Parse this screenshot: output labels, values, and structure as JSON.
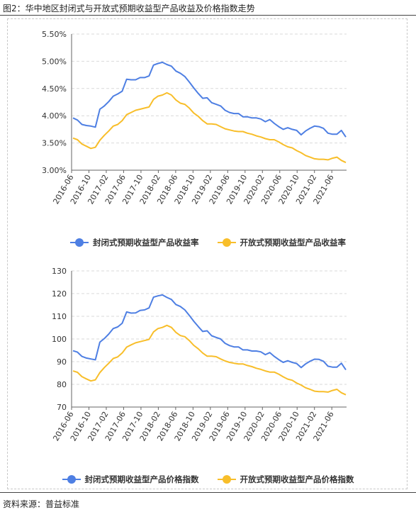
{
  "figure": {
    "title": "图2：华中地区封闭式与开放式预期收益型产品收益及价格指数走势",
    "source": "资料来源：普益标准"
  },
  "colors": {
    "closed": "#4e7fe3",
    "open": "#f8be2a",
    "grid": "#d9d9d9",
    "axis": "#666666"
  },
  "chart_data": [
    {
      "type": "line",
      "title": "",
      "xlabel": "",
      "ylabel": "",
      "x_tick_labels": [
        "2016-06",
        "2016-10",
        "2017-02",
        "2017-06",
        "2017-10",
        "2018-02",
        "2018-06",
        "2018-10",
        "2019-02",
        "2019-06",
        "2019-10",
        "2020-02",
        "2020-06",
        "2020-10",
        "2021-02",
        "2021-06"
      ],
      "y_tick_labels": [
        "3.00%",
        "3.50%",
        "4.00%",
        "4.50%",
        "5.00%",
        "5.50%"
      ],
      "ylim": [
        3.0,
        5.5
      ],
      "grid": true,
      "legend": "bottom",
      "series": [
        {
          "name": "封闭式预期收益型产品收益率",
          "color": "closed",
          "values": [
            3.96,
            3.92,
            3.84,
            3.82,
            3.81,
            3.79,
            4.12,
            4.18,
            4.26,
            4.36,
            4.4,
            4.45,
            4.67,
            4.66,
            4.66,
            4.7,
            4.7,
            4.73,
            4.93,
            4.96,
            4.98,
            4.94,
            4.91,
            4.82,
            4.78,
            4.72,
            4.62,
            4.51,
            4.41,
            4.32,
            4.33,
            4.24,
            4.21,
            4.18,
            4.1,
            4.06,
            4.04,
            4.04,
            3.98,
            3.98,
            3.96,
            3.96,
            3.94,
            3.89,
            3.93,
            3.86,
            3.8,
            3.75,
            3.78,
            3.75,
            3.73,
            3.65,
            3.72,
            3.77,
            3.81,
            3.8,
            3.77,
            3.68,
            3.66,
            3.66,
            3.73,
            3.61
          ]
        },
        {
          "name": "开放式预期收益型产品收益率",
          "color": "open",
          "values": [
            3.59,
            3.56,
            3.48,
            3.44,
            3.4,
            3.42,
            3.55,
            3.64,
            3.72,
            3.81,
            3.84,
            3.91,
            4.02,
            4.06,
            4.1,
            4.12,
            4.14,
            4.16,
            4.3,
            4.36,
            4.38,
            4.42,
            4.38,
            4.29,
            4.23,
            4.21,
            4.14,
            4.05,
            3.99,
            3.91,
            3.85,
            3.85,
            3.84,
            3.8,
            3.76,
            3.74,
            3.72,
            3.71,
            3.71,
            3.68,
            3.66,
            3.63,
            3.61,
            3.58,
            3.56,
            3.56,
            3.52,
            3.47,
            3.43,
            3.41,
            3.36,
            3.32,
            3.27,
            3.24,
            3.21,
            3.2,
            3.2,
            3.19,
            3.22,
            3.24,
            3.18,
            3.14
          ]
        }
      ]
    },
    {
      "type": "line",
      "title": "",
      "xlabel": "",
      "ylabel": "",
      "x_tick_labels": [
        "2016-06",
        "2016-10",
        "2017-02",
        "2017-06",
        "2017-10",
        "2018-02",
        "2018-06",
        "2018-10",
        "2019-02",
        "2019-06",
        "2019-10",
        "2020-02",
        "2020-06",
        "2020-10",
        "2021-02",
        "2021-06"
      ],
      "y_tick_labels": [
        "70",
        "80",
        "90",
        "100",
        "110",
        "120",
        "130"
      ],
      "ylim": [
        70,
        130
      ],
      "grid": true,
      "legend": "bottom",
      "series": [
        {
          "name": "封闭式预期收益型产品价格指数",
          "color": "closed",
          "values": [
            94.8,
            94.2,
            92.3,
            91.6,
            91.2,
            90.8,
            98.6,
            100.2,
            102.2,
            104.6,
            105.3,
            106.9,
            111.9,
            111.4,
            111.5,
            112.6,
            112.8,
            113.7,
            118.4,
            119.0,
            119.4,
            118.3,
            117.4,
            115.2,
            114.3,
            112.8,
            110.4,
            107.8,
            105.5,
            103.3,
            103.6,
            101.4,
            100.7,
            100.0,
            98.1,
            97.1,
            96.5,
            96.5,
            95.2,
            95.2,
            94.7,
            94.7,
            94.3,
            93.1,
            94.0,
            92.3,
            90.9,
            89.7,
            90.4,
            89.7,
            89.2,
            87.4,
            89.0,
            90.2,
            91.1,
            91.0,
            90.2,
            88.0,
            87.6,
            87.6,
            89.3,
            86.4
          ]
        },
        {
          "name": "开放式预期收益型产品价格指数",
          "color": "open",
          "values": [
            85.9,
            85.3,
            83.4,
            82.4,
            81.5,
            82.0,
            85.2,
            87.4,
            89.3,
            91.4,
            92.1,
            93.8,
            96.4,
            97.4,
            98.3,
            98.8,
            99.3,
            99.8,
            103.1,
            104.6,
            105.1,
            106.0,
            105.1,
            102.9,
            101.5,
            101.0,
            99.3,
            97.2,
            95.7,
            93.8,
            92.4,
            92.4,
            92.2,
            91.2,
            90.3,
            89.7,
            89.3,
            89.0,
            89.0,
            88.3,
            87.8,
            87.1,
            86.6,
            85.9,
            85.4,
            85.4,
            84.5,
            83.3,
            82.3,
            81.8,
            80.6,
            79.7,
            78.5,
            77.8,
            77.0,
            76.8,
            76.8,
            76.6,
            77.3,
            77.8,
            76.3,
            75.4
          ]
        }
      ]
    }
  ]
}
